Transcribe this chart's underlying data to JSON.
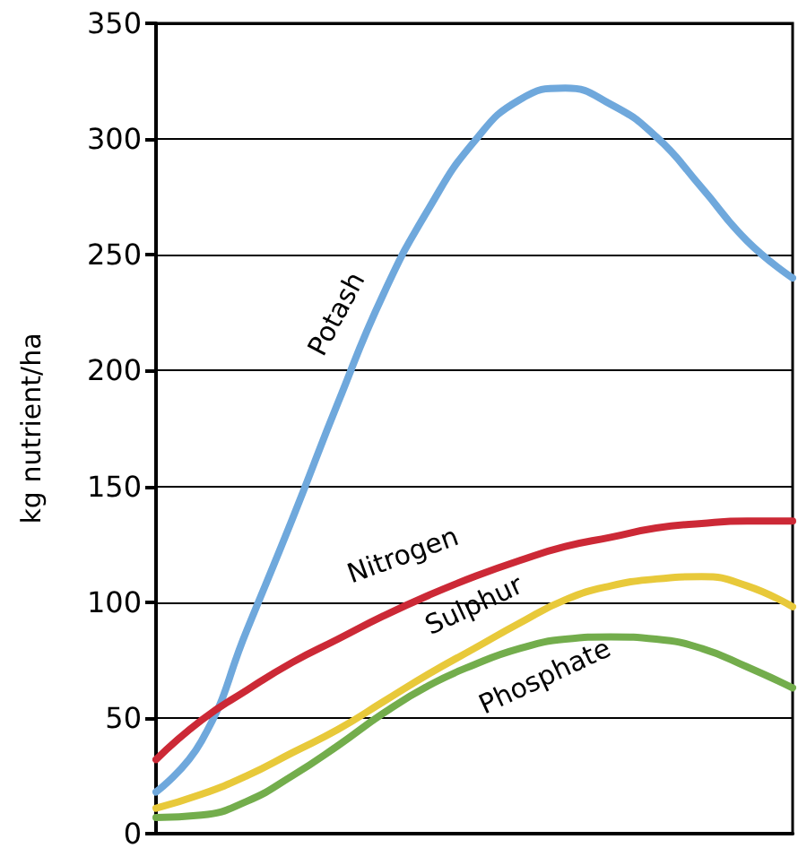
{
  "chart_data": {
    "type": "line",
    "ylabel": "kg nutrient/ha",
    "categories": [
      null,
      null,
      null,
      null,
      null,
      null,
      null,
      null,
      null,
      null,
      null,
      null,
      null,
      null,
      null
    ],
    "series": [
      {
        "name": "Potash",
        "color": "#6fa8dc",
        "values": [
          18,
          40,
          88,
          136,
          186,
          233,
          270,
          299,
          317,
          322,
          315,
          301,
          279,
          256,
          240
        ]
      },
      {
        "name": "Nitrogen",
        "color": "#cc2936",
        "values": [
          32,
          49,
          62,
          74,
          84,
          94,
          103,
          111,
          118,
          124,
          128,
          132,
          134,
          135,
          135
        ]
      },
      {
        "name": "Sulphur",
        "color": "#e8c93a",
        "values": [
          11,
          17,
          25,
          35,
          45,
          57,
          69,
          80,
          91,
          101,
          107,
          110,
          111,
          107,
          98
        ]
      },
      {
        "name": "Phosphate",
        "color": "#73ad4c",
        "values": [
          7,
          8,
          14,
          25,
          38,
          52,
          64,
          73,
          80,
          84,
          85,
          84,
          80,
          72,
          63
        ]
      }
    ],
    "ylim": [
      0,
      350
    ],
    "yticks": [
      0,
      50,
      100,
      150,
      200,
      250,
      300,
      350
    ],
    "grid": "y",
    "legend": false,
    "marker": "none",
    "line_style": "solid",
    "tick_labels": "y"
  }
}
